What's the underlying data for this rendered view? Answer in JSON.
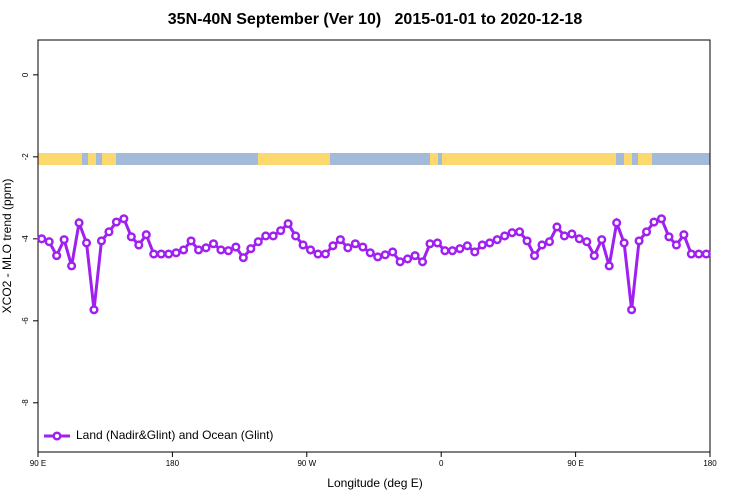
{
  "chart_data": {
    "type": "line",
    "title": "35N-40N September (Ver 10)   2015-01-01 to 2020-12-18",
    "x_label": "Longitude (deg E)",
    "y_label": "XCO2 - MLO trend (ppm)",
    "xlim": [
      90,
      540
    ],
    "xticks": [
      {
        "value": 90,
        "label": "90 E"
      },
      180,
      {
        "value": 270,
        "label": "90 W"
      },
      {
        "value": 360,
        "label": "0"
      },
      {
        "value": 450,
        "label": "90 E"
      },
      {
        "value": 540,
        "label": "180"
      }
    ],
    "ylim": [
      -9.2,
      0.85
    ],
    "yticks": [
      0,
      -2,
      -4,
      -6,
      -8
    ],
    "legend": "bottom-left",
    "x": [
      92.5,
      97.5,
      102.5,
      107.5,
      112.5,
      117.5,
      122.5,
      127.5,
      132.5,
      137.5,
      142.5,
      147.5,
      152.5,
      157.5,
      162.5,
      167.5,
      172.5,
      177.5,
      182.5,
      187.5,
      192.5,
      197.5,
      202.5,
      207.5,
      212.5,
      217.5,
      222.5,
      227.5,
      232.5,
      237.5,
      242.5,
      247.5,
      252.5,
      257.5,
      262.5,
      267.5,
      272.5,
      277.5,
      282.5,
      287.5,
      292.5,
      297.5,
      302.5,
      307.5,
      312.5,
      317.5,
      322.5,
      327.5,
      332.5,
      337.5,
      342.5,
      347.5,
      352.5,
      357.5,
      362.5,
      367.5,
      372.5,
      377.5,
      382.5,
      387.5,
      392.5,
      397.5,
      402.5,
      407.5,
      412.5,
      417.5,
      422.5,
      427.5,
      432.5,
      437.5,
      442.5,
      447.5,
      452.5,
      457.5,
      462.5,
      467.5,
      472.5,
      477.5,
      482.5,
      487.5,
      492.5,
      497.5,
      502.5,
      507.5,
      512.5,
      517.5,
      522.5,
      527.5,
      532.5,
      537.5
    ],
    "series": [
      {
        "name": "Land (Nadir&Glint) and Ocean (Glint)",
        "color": "#a020f0",
        "values": [
          -4.0,
          -4.07,
          -4.41,
          -4.02,
          -4.66,
          -3.61,
          -4.1,
          -5.73,
          -4.05,
          -3.83,
          -3.59,
          -3.51,
          -3.95,
          -4.15,
          -3.9,
          -4.37,
          -4.37,
          -4.37,
          -4.34,
          -4.27,
          -4.05,
          -4.27,
          -4.22,
          -4.12,
          -4.27,
          -4.29,
          -4.2,
          -4.46,
          -4.24,
          -4.07,
          -3.93,
          -3.93,
          -3.8,
          -3.63,
          -3.93,
          -4.15,
          -4.27,
          -4.37,
          -4.37,
          -4.17,
          -4.02,
          -4.22,
          -4.12,
          -4.2,
          -4.34,
          -4.44,
          -4.39,
          -4.32,
          -4.56,
          -4.49,
          -4.41,
          -4.56,
          -4.12,
          -4.1,
          -4.29,
          -4.29,
          -4.24,
          -4.17,
          -4.32,
          -4.15,
          -4.1,
          -4.02,
          -3.93,
          -3.85,
          -3.83,
          -4.05,
          -4.41,
          -4.15,
          -4.07,
          -3.71,
          -3.93,
          -3.88,
          -4.0,
          -4.07,
          -4.41,
          -4.02,
          -4.66,
          -3.61,
          -4.1,
          -5.73,
          -4.05,
          -3.83,
          -3.59,
          -3.51,
          -3.95,
          -4.15,
          -3.9,
          -4.37,
          -4.37,
          -4.37
        ]
      }
    ]
  }
}
